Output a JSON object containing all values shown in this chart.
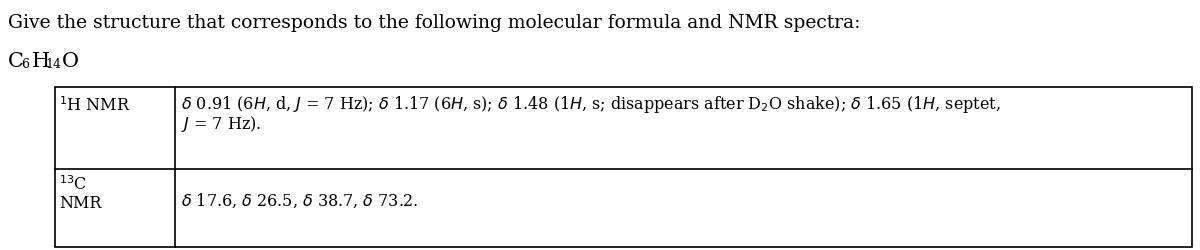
{
  "title": "Give the structure that corresponds to the following molecular formula and NMR spectra:",
  "background_color": "#ffffff",
  "text_color": "#000000",
  "table_border_color": "#000000",
  "font_size_title": 13.5,
  "font_size_formula": 15,
  "font_size_table": 11.5,
  "row1_line1": "δ 0.91 (6ℍ, d, δ = 7 Hz); δ 1.17 (6ℍ, s); δ 1.48 (1ℍ, s; disappears after D₂O shake); δ 1.65 (1ℍ, septet,",
  "row1_line2": "δ = 7 Hz).",
  "row2_content": "δ 17.6, δ 26.5, δ 38.7, δ 73.2."
}
